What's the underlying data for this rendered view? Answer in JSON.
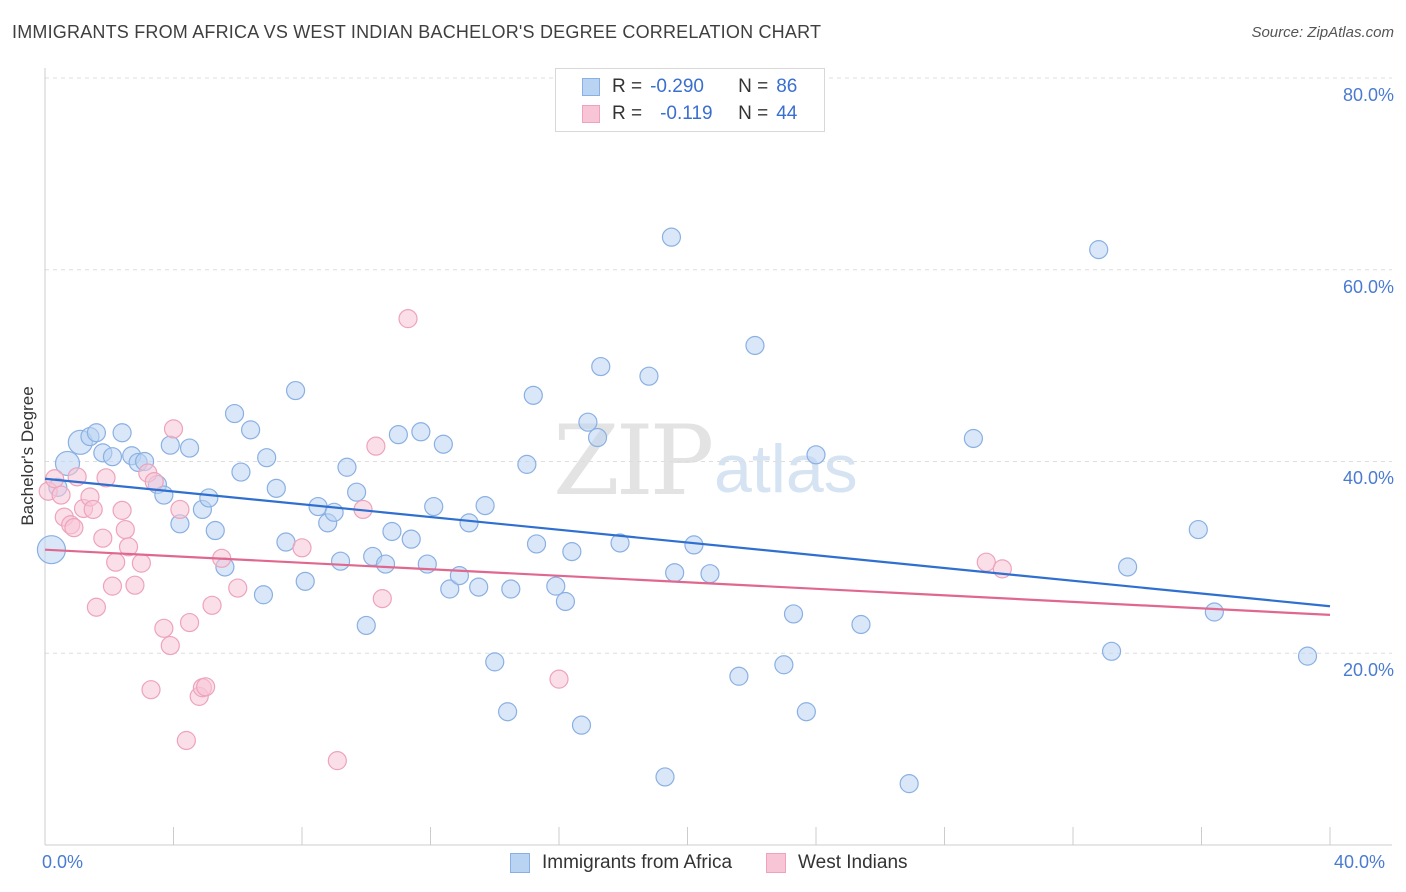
{
  "title": "IMMIGRANTS FROM AFRICA VS WEST INDIAN BACHELOR'S DEGREE CORRELATION CHART",
  "source": "Source: ZipAtlas.com",
  "watermark": {
    "zip": "ZIP",
    "atlas": "atlas"
  },
  "legend_top": {
    "rows": [
      {
        "r_label": "R =",
        "r_value": "-0.290",
        "n_label": "N =",
        "n_value": "86"
      },
      {
        "r_label": "R =",
        "r_value": "-0.119",
        "n_label": "N =",
        "n_value": "44"
      }
    ]
  },
  "legend_bottom": {
    "items": [
      "Immigrants from Africa",
      "West Indians"
    ]
  },
  "colors": {
    "blue_fill": "#b9d3f3",
    "blue_stroke": "#8ab0e3",
    "blue_line": "#2f6fd0",
    "pink_fill": "#f7c5d5",
    "pink_stroke": "#eea3bb",
    "pink_line": "#e0688f",
    "grid": "#dddddd",
    "tick_text": "#4a7bd0"
  },
  "chart_data": {
    "type": "scatter",
    "title": "IMMIGRANTS FROM AFRICA VS WEST INDIAN BACHELOR'S DEGREE CORRELATION CHART",
    "xlabel": "",
    "ylabel": "Bachelor's Degree",
    "xlim": [
      0,
      40
    ],
    "ylim": [
      0,
      80
    ],
    "x_tick_labels": [
      "0.0%",
      "40.0%"
    ],
    "y_tick_labels": [
      "20.0%",
      "40.0%",
      "60.0%",
      "80.0%"
    ],
    "y_ticks": [
      20,
      40,
      60,
      80
    ],
    "grid": true,
    "legend_position": "top-center",
    "series": [
      {
        "name": "Immigrants from Africa",
        "trend": {
          "x": [
            0,
            40
          ],
          "y": [
            38.2,
            24.9
          ]
        },
        "points": [
          [
            0.2,
            30.8
          ],
          [
            0.4,
            37.3
          ],
          [
            0.7,
            39.8
          ],
          [
            1.1,
            42.0
          ],
          [
            1.4,
            42.6
          ],
          [
            1.6,
            43.0
          ],
          [
            1.8,
            40.9
          ],
          [
            2.1,
            40.5
          ],
          [
            2.4,
            43.0
          ],
          [
            2.7,
            40.6
          ],
          [
            2.9,
            39.9
          ],
          [
            3.1,
            40.0
          ],
          [
            3.5,
            37.6
          ],
          [
            3.7,
            36.5
          ],
          [
            3.9,
            41.7
          ],
          [
            4.2,
            33.5
          ],
          [
            4.5,
            41.4
          ],
          [
            4.9,
            35.0
          ],
          [
            5.1,
            36.2
          ],
          [
            5.3,
            32.8
          ],
          [
            5.6,
            29.0
          ],
          [
            5.9,
            45.0
          ],
          [
            6.1,
            38.9
          ],
          [
            6.4,
            43.3
          ],
          [
            6.8,
            26.1
          ],
          [
            6.9,
            40.4
          ],
          [
            7.2,
            37.2
          ],
          [
            7.5,
            31.6
          ],
          [
            7.8,
            47.4
          ],
          [
            8.1,
            27.5
          ],
          [
            8.5,
            35.3
          ],
          [
            8.8,
            33.6
          ],
          [
            9.0,
            34.7
          ],
          [
            9.2,
            29.6
          ],
          [
            9.4,
            39.4
          ],
          [
            9.7,
            36.8
          ],
          [
            10.0,
            22.9
          ],
          [
            10.2,
            30.1
          ],
          [
            10.6,
            29.3
          ],
          [
            10.8,
            32.7
          ],
          [
            11.0,
            42.8
          ],
          [
            11.4,
            31.9
          ],
          [
            11.7,
            43.1
          ],
          [
            11.9,
            29.3
          ],
          [
            12.1,
            35.3
          ],
          [
            12.4,
            41.8
          ],
          [
            12.6,
            26.7
          ],
          [
            12.9,
            28.1
          ],
          [
            13.2,
            33.6
          ],
          [
            13.5,
            26.9
          ],
          [
            13.7,
            35.4
          ],
          [
            14.0,
            19.1
          ],
          [
            14.4,
            13.9
          ],
          [
            14.5,
            26.7
          ],
          [
            15.0,
            39.7
          ],
          [
            15.2,
            46.9
          ],
          [
            15.3,
            31.4
          ],
          [
            15.9,
            27.0
          ],
          [
            16.2,
            25.4
          ],
          [
            16.4,
            30.6
          ],
          [
            16.7,
            12.5
          ],
          [
            16.9,
            44.1
          ],
          [
            17.2,
            42.5
          ],
          [
            17.3,
            49.9
          ],
          [
            17.9,
            31.5
          ],
          [
            18.8,
            48.9
          ],
          [
            19.3,
            7.1
          ],
          [
            19.5,
            63.4
          ],
          [
            19.6,
            28.4
          ],
          [
            20.2,
            31.3
          ],
          [
            20.7,
            28.3
          ],
          [
            21.6,
            17.6
          ],
          [
            22.1,
            52.1
          ],
          [
            23.0,
            18.8
          ],
          [
            23.3,
            24.1
          ],
          [
            23.7,
            13.9
          ],
          [
            24.0,
            40.7
          ],
          [
            25.4,
            23.0
          ],
          [
            26.9,
            6.4
          ],
          [
            28.9,
            42.4
          ],
          [
            32.8,
            62.1
          ],
          [
            33.2,
            20.2
          ],
          [
            33.7,
            29.0
          ],
          [
            35.9,
            32.9
          ],
          [
            36.4,
            24.3
          ],
          [
            39.3,
            19.7
          ]
        ]
      },
      {
        "name": "West Indians",
        "trend": {
          "x": [
            0,
            40
          ],
          "y": [
            30.8,
            24.0
          ]
        },
        "points": [
          [
            0.1,
            36.9
          ],
          [
            0.3,
            38.2
          ],
          [
            0.5,
            36.5
          ],
          [
            0.6,
            34.2
          ],
          [
            0.8,
            33.4
          ],
          [
            0.9,
            33.1
          ],
          [
            1.0,
            38.4
          ],
          [
            1.2,
            35.1
          ],
          [
            1.4,
            36.3
          ],
          [
            1.5,
            35.0
          ],
          [
            1.6,
            24.8
          ],
          [
            1.8,
            32.0
          ],
          [
            1.9,
            38.3
          ],
          [
            2.1,
            27.0
          ],
          [
            2.2,
            29.5
          ],
          [
            2.4,
            34.9
          ],
          [
            2.5,
            32.9
          ],
          [
            2.6,
            31.1
          ],
          [
            2.8,
            27.1
          ],
          [
            3.0,
            29.4
          ],
          [
            3.2,
            38.8
          ],
          [
            3.3,
            16.2
          ],
          [
            3.4,
            37.9
          ],
          [
            3.7,
            22.6
          ],
          [
            3.9,
            20.8
          ],
          [
            4.0,
            43.4
          ],
          [
            4.2,
            35.0
          ],
          [
            4.4,
            10.9
          ],
          [
            4.5,
            23.2
          ],
          [
            4.8,
            15.5
          ],
          [
            4.9,
            16.4
          ],
          [
            5.0,
            16.5
          ],
          [
            5.2,
            25.0
          ],
          [
            5.5,
            29.9
          ],
          [
            6.0,
            26.8
          ],
          [
            8.0,
            31.0
          ],
          [
            9.1,
            8.8
          ],
          [
            9.9,
            35.0
          ],
          [
            10.3,
            41.6
          ],
          [
            10.5,
            25.7
          ],
          [
            11.3,
            54.9
          ],
          [
            16.0,
            17.3
          ],
          [
            29.3,
            29.5
          ],
          [
            29.8,
            28.8
          ]
        ]
      }
    ]
  }
}
